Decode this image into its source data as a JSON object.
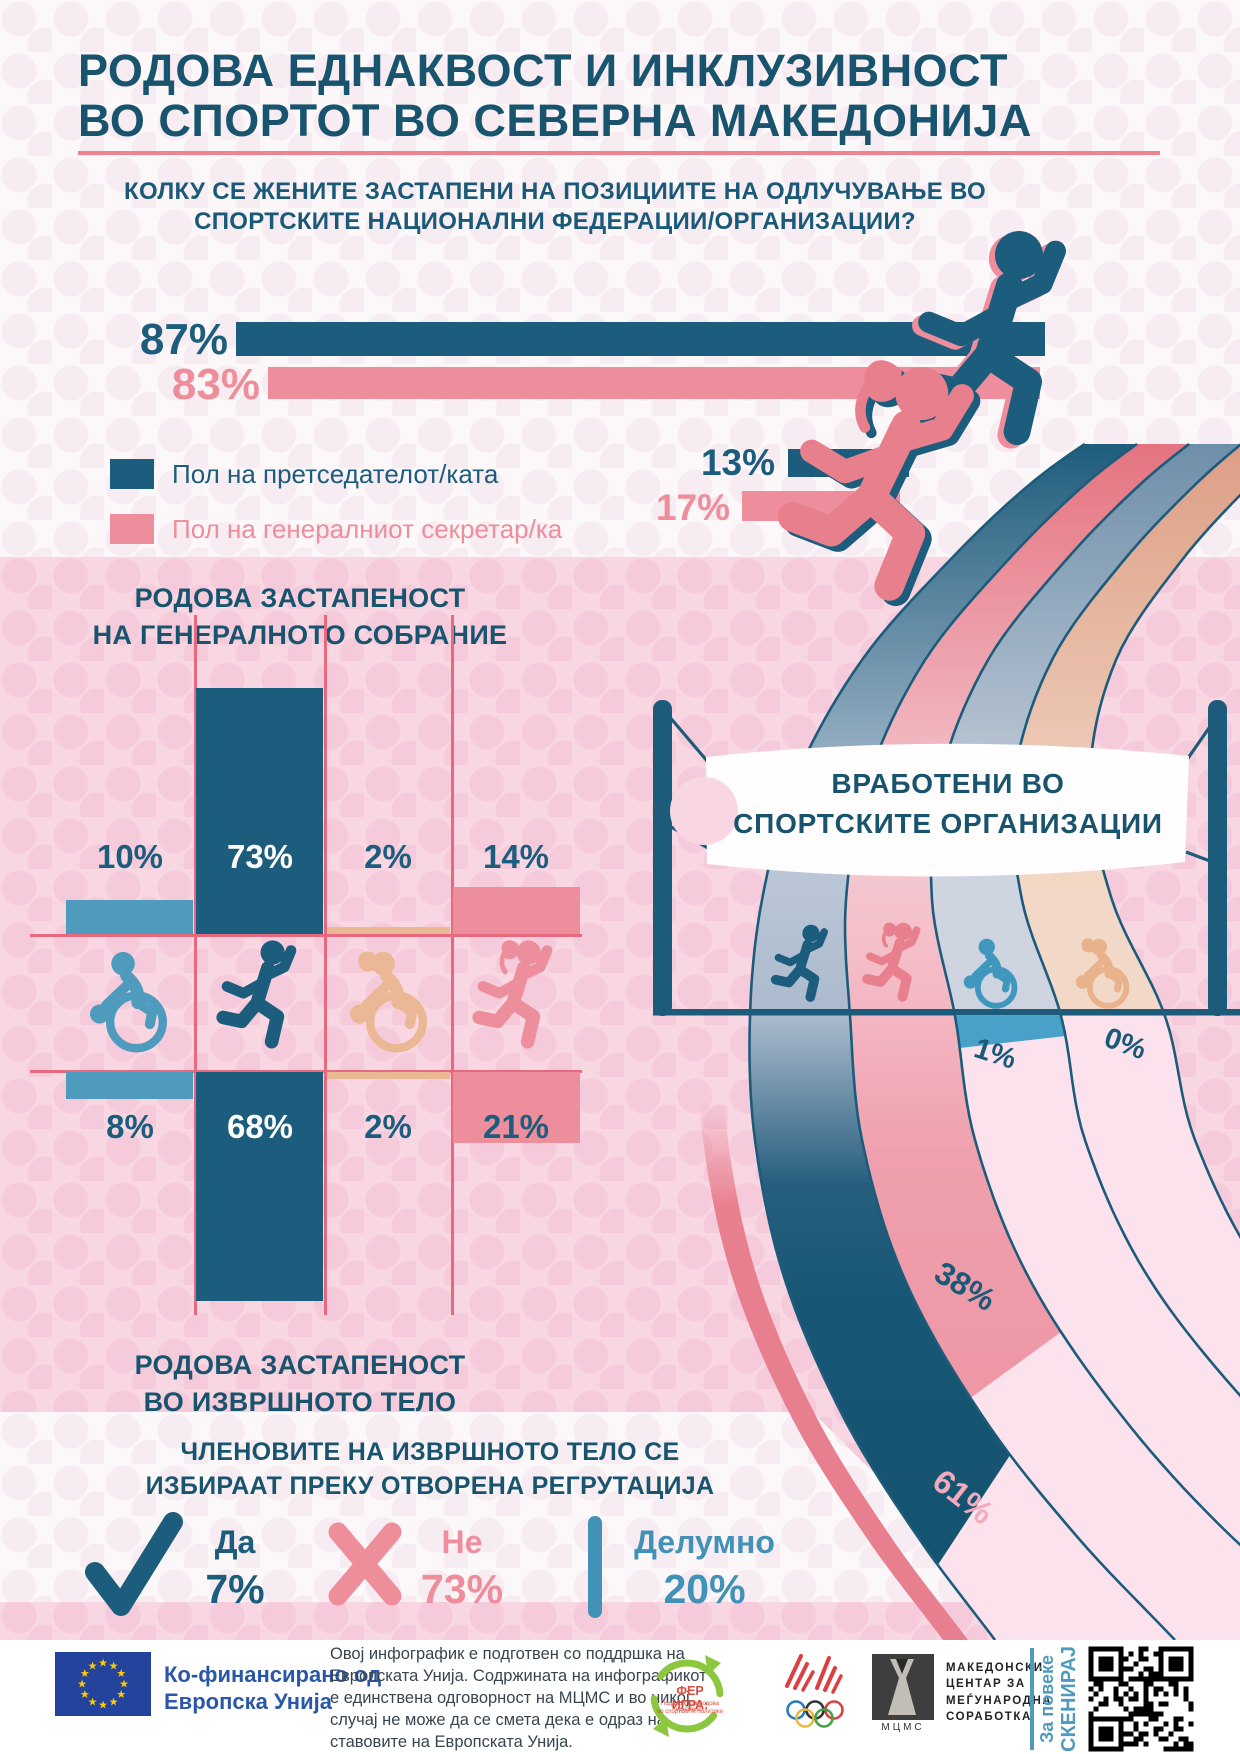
{
  "header": {
    "title_line1": "РОДОВА ЕДНАКВОСТ И ИНКЛУЗИВНОСТ",
    "title_line2": "ВО СПОРТОТ ВО СЕВЕРНА МАКЕДОНИЈА"
  },
  "question1": {
    "line1": "КОЛКУ СЕ ЖЕНИТЕ ЗАСТАПЕНИ НА ПОЗИЦИИТЕ НА ОДЛУЧУВАЊЕ ВО",
    "line2": "СПОРТСКИТЕ НАЦИОНАЛНИ ФЕДЕРАЦИИ/ОРГАНИЗАЦИИ?"
  },
  "colors": {
    "teal": "#1C5C7C",
    "pink": "#EE8D9B",
    "light_blue": "#4E9BBE",
    "peach": "#EBB896",
    "salmon": "#E87F8E",
    "blue": "#4292B8",
    "eu_blue": "#24439C",
    "green": "#8DC63F",
    "red": "#DD4A3F",
    "accent_line": "#F08390"
  },
  "chart_data": [
    {
      "id": "leadership-positions",
      "type": "bar",
      "series": [
        {
          "name": "Пол на претседателот/ката",
          "color": "#1C5C7C",
          "values": [
            87,
            13
          ],
          "labels": [
            "87%",
            "13%"
          ]
        },
        {
          "name": "Пол на генералниот секретар/ка",
          "color": "#EE8D9B",
          "values": [
            83,
            17
          ],
          "labels": [
            "83%",
            "17%"
          ]
        }
      ],
      "legend": [
        {
          "label": "Пол на претседателот/ката",
          "color": "#1C5C7C"
        },
        {
          "label": "Пол на генералниот секретар/ка",
          "color": "#EE8D9B"
        }
      ]
    },
    {
      "id": "general-assembly",
      "type": "bar",
      "title_line1": "РОДОВА ЗАСТАПЕНОСТ",
      "title_line2": "НА ГЕНЕРАЛНОТО СОБРАНИЕ",
      "categories": [
        "wheelchair-male",
        "runner-male",
        "wheelchair-female",
        "runner-female"
      ],
      "values": [
        10,
        73,
        2,
        14
      ],
      "labels": [
        "10%",
        "73%",
        "2%",
        "14%"
      ],
      "colors": [
        "#4E9BBE",
        "#1C5C7C",
        "#EBB896",
        "#EC8E9C"
      ]
    },
    {
      "id": "executive-body",
      "type": "bar",
      "title_line1": "РОДОВА ЗАСТАПЕНОСТ",
      "title_line2": "ВО ИЗВРШНОТО ТЕЛО",
      "categories": [
        "wheelchair-male",
        "runner-male",
        "wheelchair-female",
        "runner-female"
      ],
      "values": [
        8,
        68,
        2,
        21
      ],
      "labels": [
        "8%",
        "68%",
        "2%",
        "21%"
      ],
      "colors": [
        "#4E9BBE",
        "#1C5C7C",
        "#EBB896",
        "#EC8E9C"
      ]
    },
    {
      "id": "employees-sport-organizations",
      "type": "area",
      "title_line1": "ВРАБОТЕНИ ВО",
      "title_line2": "СПОРТСКИТЕ ОРГАНИЗАЦИИ",
      "lanes": [
        {
          "category": "runner-male",
          "value": 61,
          "label": "61%",
          "color": "#1C5C7C"
        },
        {
          "category": "runner-female",
          "value": 38,
          "label": "38%",
          "color": "#E87F8D"
        },
        {
          "category": "wheelchair-male",
          "value": 1,
          "label": "1%",
          "color": "#3F97BD"
        },
        {
          "category": "wheelchair-female",
          "value": 0,
          "label": "0%",
          "color": "#E8B28C"
        }
      ]
    },
    {
      "id": "open-recruitment",
      "type": "bar",
      "title_line1": "ЧЛЕНОВИТЕ НА ИЗВРШНОТО ТЕЛО СЕ",
      "title_line2": "ИЗБИРААТ ПРЕКУ ОТВОРЕНА РЕГРУТАЦИЈА",
      "options": [
        {
          "icon": "check",
          "label": "Да",
          "value": 7,
          "value_label": "7%",
          "color": "#1C5C7C"
        },
        {
          "icon": "cross",
          "label": "Не",
          "value": 73,
          "value_label": "73%",
          "color": "#EE8D9B"
        },
        {
          "icon": "bar",
          "label": "Делумно",
          "value": 20,
          "value_label": "20%",
          "color": "#4292B8"
        }
      ]
    }
  ],
  "footer": {
    "eu": {
      "cofinanced_line1": "Ко-финансирано од",
      "cofinanced_line2": "Европска Унија"
    },
    "disclaimer": "Овој инфографик е подготвен со поддршка на Европската Унија. Содржината на инфографикот е единствена одговорност на МЦМС и во никој случај не може да се смета дека е одраз на ставовите на Европската Унија.",
    "fair_play": {
      "title": "ФЕР ИГРА:",
      "subtitle_line1": "Поддршка за родова еднаквост",
      "subtitle_line2": "во спортските политики"
    },
    "mcms": {
      "abbr": "МЦМС",
      "name_lines": [
        "МАКЕДОНСКИ",
        "ЦЕНТАР ЗА",
        "МЕЃУНАРОДНА",
        "СОРАБОТКА"
      ]
    },
    "scan": {
      "line1": "За повеќе",
      "line2": "СКЕНИРАЈ"
    }
  }
}
